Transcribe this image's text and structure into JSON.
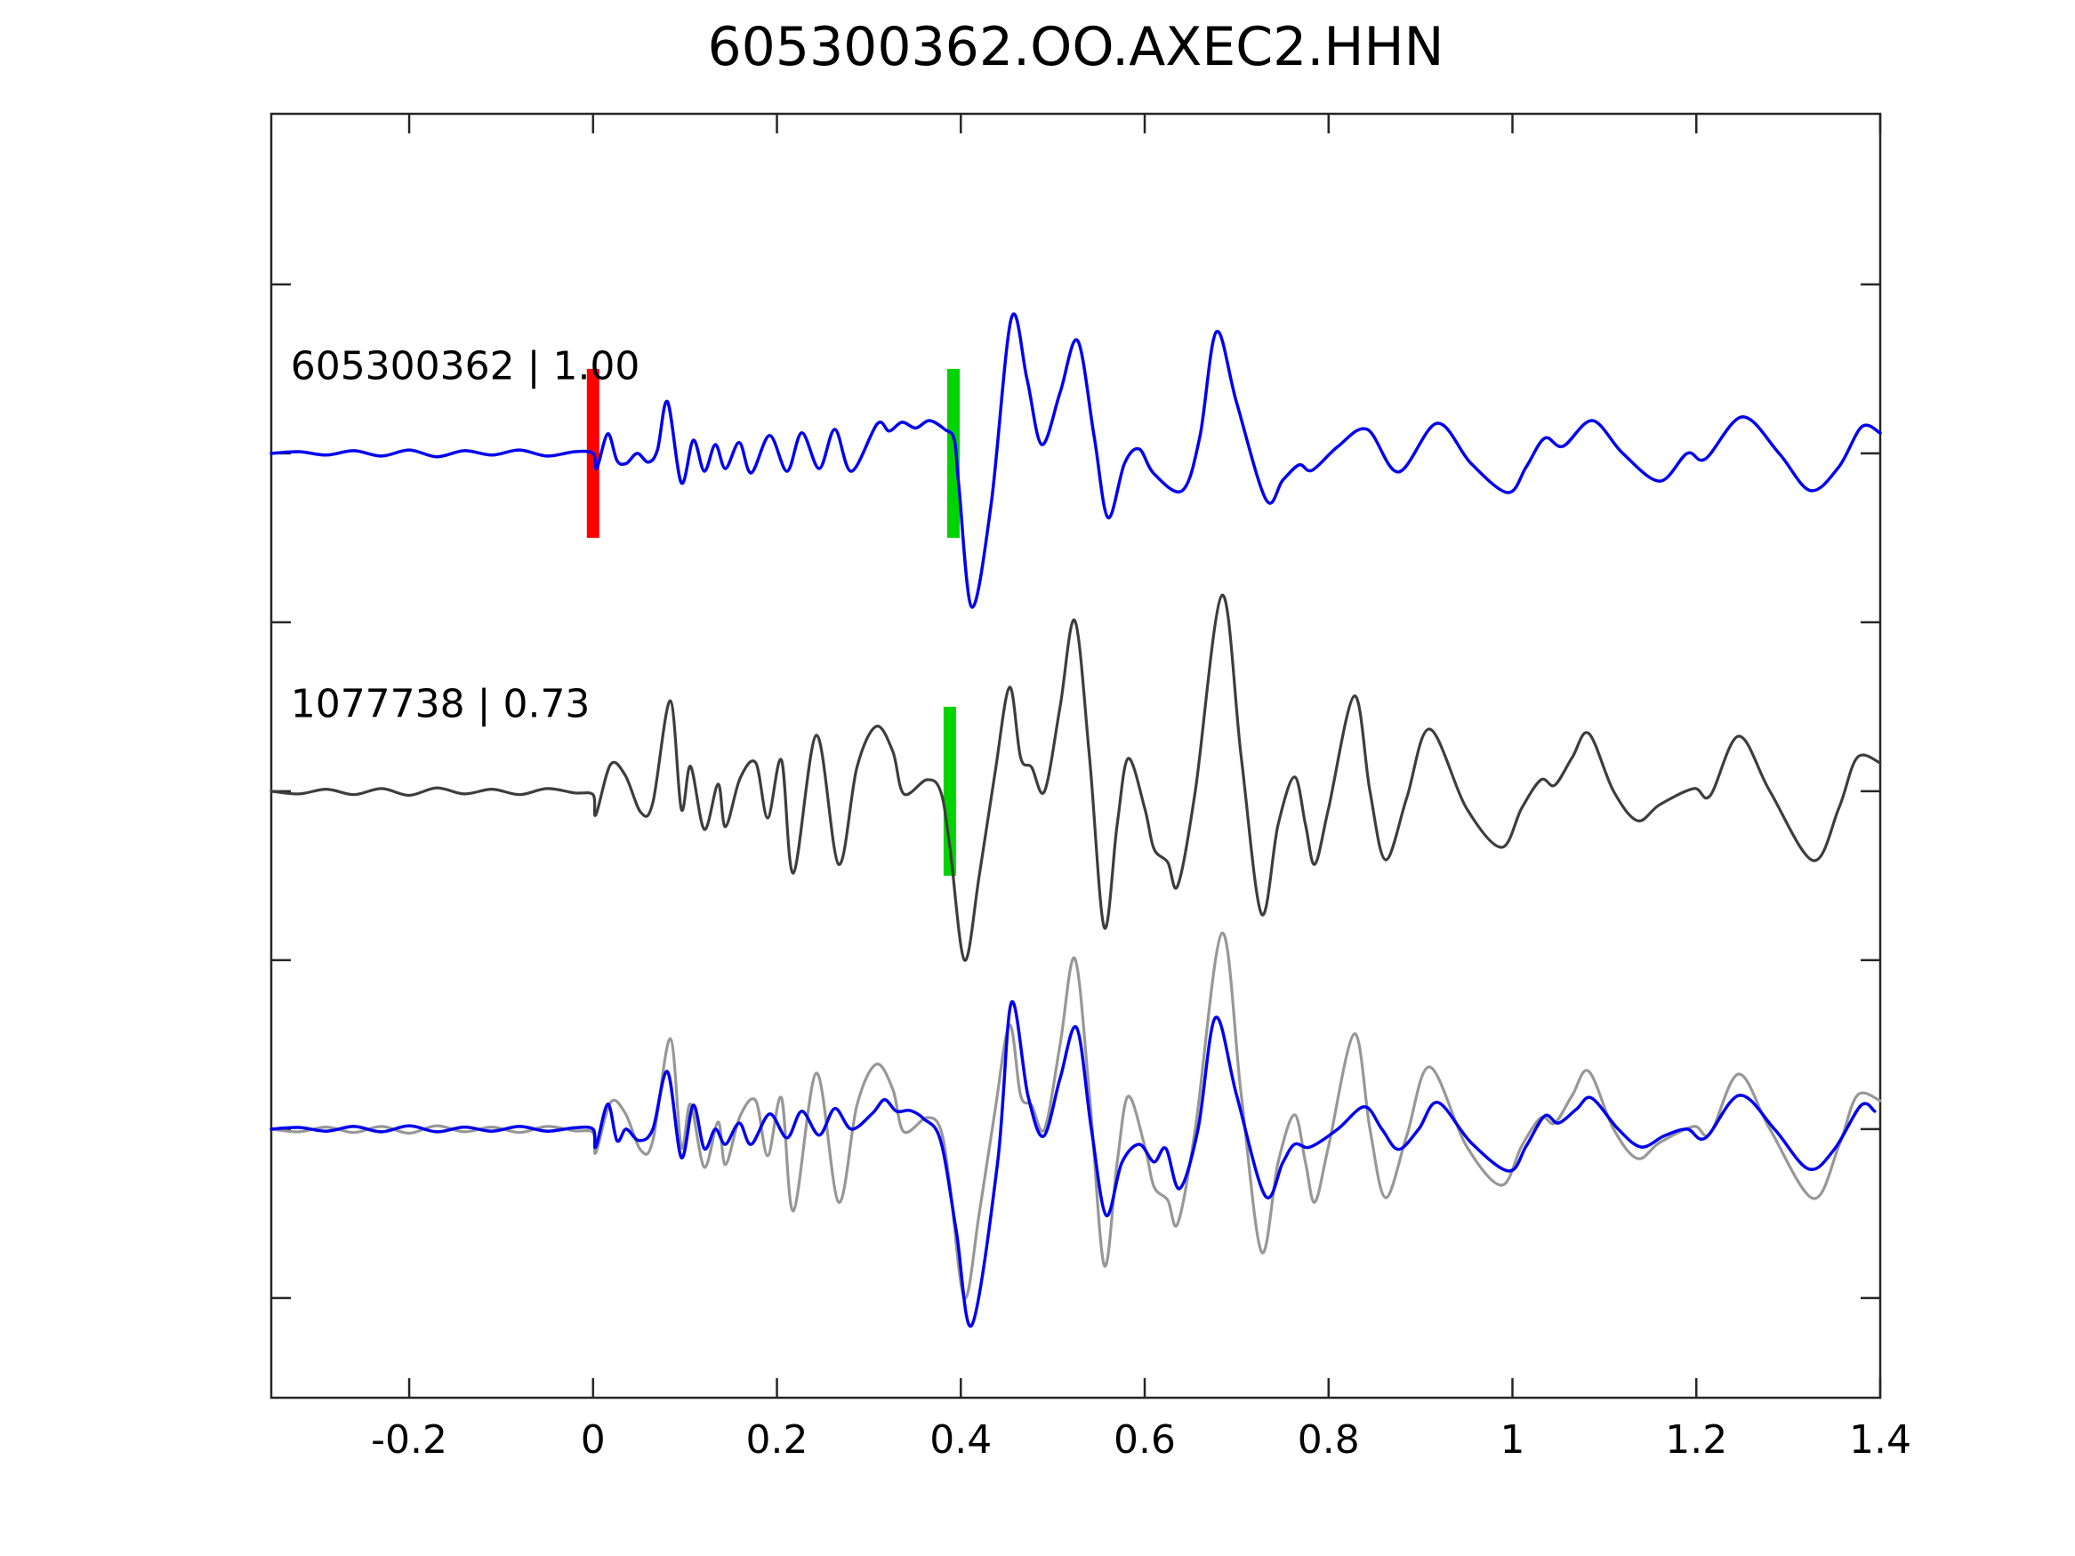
{
  "chart_data": {
    "type": "line",
    "title": "605300362.OO.AXEC2.HHN",
    "xlabel": "",
    "ylabel": "",
    "grid": false,
    "legend": "none",
    "xlim": [
      -0.35,
      1.4
    ],
    "ylim_units": [
      -2.795,
      1.005
    ],
    "xticks": [
      -0.2,
      0,
      0.2,
      0.4,
      0.6,
      0.8,
      1,
      1.2,
      1.4
    ],
    "xtick_labels": [
      "-0.2",
      "0",
      "0.2",
      "0.4",
      "0.6",
      "0.8",
      "1",
      "1.2",
      "1.4"
    ],
    "ytick_units": [
      0.5,
      0,
      -0.5,
      -1,
      -1.5,
      -2,
      -2.5
    ],
    "colors": {
      "blue": "#0000ee",
      "darkgray": "#3d3d3d",
      "lightgray": "#979797",
      "red": "#ff0000",
      "green": "#00d400",
      "axis": "#262626",
      "text": "#000000"
    },
    "pick_half_height_units": 0.25,
    "picks": [
      {
        "trace": "ref",
        "t": 0.0,
        "color_key": "red"
      },
      {
        "trace": "ref",
        "t": 0.392,
        "color_key": "green"
      },
      {
        "trace": "cand",
        "t": 0.388,
        "color_key": "green"
      }
    ],
    "traces": [
      {
        "id": "ref",
        "label": "605300362 | 1.00",
        "label_xy_units": [
          -0.329,
          0.22
        ],
        "color_key": "blue",
        "width": 3.5,
        "baseline_unit": 0,
        "points": [
          [
            -0.35,
            0
          ],
          [
            -0.32,
            0.005
          ],
          [
            -0.29,
            -0.005
          ],
          [
            -0.26,
            0.008
          ],
          [
            -0.23,
            -0.008
          ],
          [
            -0.2,
            0.01
          ],
          [
            -0.17,
            -0.01
          ],
          [
            -0.14,
            0.008
          ],
          [
            -0.11,
            -0.005
          ],
          [
            -0.08,
            0.01
          ],
          [
            -0.05,
            -0.008
          ],
          [
            -0.02,
            0.005
          ],
          [
            0,
            0
          ],
          [
            0.004,
            -0.045
          ],
          [
            0.016,
            0.058
          ],
          [
            0.026,
            -0.021
          ],
          [
            0.036,
            -0.03
          ],
          [
            0.048,
            0.0
          ],
          [
            0.06,
            -0.026
          ],
          [
            0.07,
            0.01
          ],
          [
            0.081,
            0.153
          ],
          [
            0.096,
            -0.087
          ],
          [
            0.109,
            0.039
          ],
          [
            0.121,
            -0.053
          ],
          [
            0.133,
            0.026
          ],
          [
            0.144,
            -0.045
          ],
          [
            0.159,
            0.032
          ],
          [
            0.172,
            -0.058
          ],
          [
            0.192,
            0.053
          ],
          [
            0.211,
            -0.053
          ],
          [
            0.227,
            0.061
          ],
          [
            0.246,
            -0.045
          ],
          [
            0.263,
            0.071
          ],
          [
            0.281,
            -0.053
          ],
          [
            0.309,
            0.087
          ],
          [
            0.322,
            0.066
          ],
          [
            0.336,
            0.092
          ],
          [
            0.351,
            0.075
          ],
          [
            0.366,
            0.097
          ],
          [
            0.383,
            0.07
          ],
          [
            0.393,
            0.04
          ],
          [
            0.398,
            -0.1
          ],
          [
            0.412,
            -0.455
          ],
          [
            0.433,
            -0.15
          ],
          [
            0.455,
            0.4
          ],
          [
            0.472,
            0.22
          ],
          [
            0.488,
            0.026
          ],
          [
            0.508,
            0.18
          ],
          [
            0.527,
            0.334
          ],
          [
            0.545,
            0.05
          ],
          [
            0.56,
            -0.19
          ],
          [
            0.578,
            -0.03
          ],
          [
            0.594,
            0.013
          ],
          [
            0.61,
            -0.06
          ],
          [
            0.641,
            -0.11
          ],
          [
            0.66,
            0.05
          ],
          [
            0.678,
            0.36
          ],
          [
            0.7,
            0.15
          ],
          [
            0.732,
            -0.137
          ],
          [
            0.75,
            -0.08
          ],
          [
            0.768,
            -0.034
          ],
          [
            0.782,
            -0.05
          ],
          [
            0.81,
            0.02
          ],
          [
            0.842,
            0.071
          ],
          [
            0.876,
            -0.055
          ],
          [
            0.918,
            0.089
          ],
          [
            0.955,
            -0.03
          ],
          [
            0.995,
            -0.116
          ],
          [
            1.015,
            -0.04
          ],
          [
            1.035,
            0.045
          ],
          [
            1.055,
            0.021
          ],
          [
            1.087,
            0.097
          ],
          [
            1.12,
            0.0
          ],
          [
            1.16,
            -0.082
          ],
          [
            1.19,
            0.0
          ],
          [
            1.21,
            -0.016
          ],
          [
            1.25,
            0.108
          ],
          [
            1.29,
            0.0
          ],
          [
            1.324,
            -0.11
          ],
          [
            1.355,
            -0.04
          ],
          [
            1.38,
            0.079
          ],
          [
            1.4,
            0.06
          ]
        ]
      },
      {
        "id": "cand",
        "label": "1077738 | 0.73",
        "label_xy_units": [
          -0.329,
          -0.78
        ],
        "color_key": "darkgray",
        "width": 3.2,
        "baseline_unit": -1,
        "points": [
          [
            -0.35,
            0
          ],
          [
            -0.32,
            -0.008
          ],
          [
            -0.29,
            0.006
          ],
          [
            -0.26,
            -0.01
          ],
          [
            -0.23,
            0.008
          ],
          [
            -0.2,
            -0.012
          ],
          [
            -0.17,
            0.01
          ],
          [
            -0.14,
            -0.008
          ],
          [
            -0.11,
            0.006
          ],
          [
            -0.08,
            -0.01
          ],
          [
            -0.05,
            0.008
          ],
          [
            -0.02,
            -0.005
          ],
          [
            0,
            -0.01
          ],
          [
            0.003,
            -0.07
          ],
          [
            0.019,
            0.079
          ],
          [
            0.035,
            0.047
          ],
          [
            0.052,
            -0.063
          ],
          [
            0.065,
            -0.034
          ],
          [
            0.084,
            0.268
          ],
          [
            0.096,
            -0.053
          ],
          [
            0.106,
            0.074
          ],
          [
            0.121,
            -0.113
          ],
          [
            0.136,
            0.021
          ],
          [
            0.144,
            -0.105
          ],
          [
            0.16,
            0.039
          ],
          [
            0.177,
            0.084
          ],
          [
            0.19,
            -0.079
          ],
          [
            0.205,
            0.092
          ],
          [
            0.218,
            -0.242
          ],
          [
            0.243,
            0.166
          ],
          [
            0.267,
            -0.216
          ],
          [
            0.287,
            0.071
          ],
          [
            0.308,
            0.192
          ],
          [
            0.326,
            0.118
          ],
          [
            0.338,
            -0.008
          ],
          [
            0.363,
            0.034
          ],
          [
            0.378,
            0.0
          ],
          [
            0.388,
            -0.163
          ],
          [
            0.404,
            -0.5
          ],
          [
            0.42,
            -0.25
          ],
          [
            0.437,
            0.05
          ],
          [
            0.453,
            0.308
          ],
          [
            0.465,
            0.1
          ],
          [
            0.477,
            0.071
          ],
          [
            0.491,
            0.0
          ],
          [
            0.508,
            0.25
          ],
          [
            0.524,
            0.505
          ],
          [
            0.54,
            0.1
          ],
          [
            0.556,
            -0.403
          ],
          [
            0.57,
            -0.1
          ],
          [
            0.582,
            0.097
          ],
          [
            0.6,
            -0.05
          ],
          [
            0.61,
            -0.17
          ],
          [
            0.625,
            -0.21
          ],
          [
            0.636,
            -0.279
          ],
          [
            0.655,
            0.0
          ],
          [
            0.684,
            0.58
          ],
          [
            0.705,
            0.1
          ],
          [
            0.727,
            -0.363
          ],
          [
            0.745,
            -0.1
          ],
          [
            0.763,
            0.042
          ],
          [
            0.775,
            -0.1
          ],
          [
            0.785,
            -0.216
          ],
          [
            0.8,
            -0.05
          ],
          [
            0.828,
            0.282
          ],
          [
            0.845,
            0.0
          ],
          [
            0.862,
            -0.203
          ],
          [
            0.885,
            -0.02
          ],
          [
            0.91,
            0.184
          ],
          [
            0.95,
            -0.05
          ],
          [
            0.988,
            -0.166
          ],
          [
            1.01,
            -0.05
          ],
          [
            1.031,
            0.034
          ],
          [
            1.046,
            0.018
          ],
          [
            1.065,
            0.1
          ],
          [
            1.083,
            0.171
          ],
          [
            1.11,
            0.0
          ],
          [
            1.136,
            -0.087
          ],
          [
            1.16,
            -0.04
          ],
          [
            1.197,
            0.008
          ],
          [
            1.215,
            -0.013
          ],
          [
            1.246,
            0.163
          ],
          [
            1.28,
            0.0
          ],
          [
            1.327,
            -0.205
          ],
          [
            1.355,
            -0.05
          ],
          [
            1.375,
            0.1
          ],
          [
            1.4,
            0.084
          ]
        ]
      },
      {
        "id": "overlay_gray",
        "label": "",
        "color_key": "lightgray",
        "width": 3.2,
        "baseline_unit": -2,
        "points_ref": "cand"
      },
      {
        "id": "overlay_blue",
        "label": "",
        "color_key": "blue",
        "width": 3.5,
        "baseline_unit": -2,
        "points": [
          [
            -0.35,
            0
          ],
          [
            -0.32,
            0.005
          ],
          [
            -0.29,
            -0.006
          ],
          [
            -0.26,
            0.008
          ],
          [
            -0.23,
            -0.008
          ],
          [
            -0.2,
            0.01
          ],
          [
            -0.17,
            -0.008
          ],
          [
            -0.14,
            0.006
          ],
          [
            -0.11,
            -0.006
          ],
          [
            -0.08,
            0.008
          ],
          [
            -0.05,
            -0.006
          ],
          [
            -0.02,
            0.004
          ],
          [
            0,
            0
          ],
          [
            0.003,
            -0.053
          ],
          [
            0.016,
            0.074
          ],
          [
            0.026,
            -0.034
          ],
          [
            0.036,
            0.0
          ],
          [
            0.05,
            -0.034
          ],
          [
            0.065,
            0.0
          ],
          [
            0.081,
            0.17
          ],
          [
            0.096,
            -0.084
          ],
          [
            0.109,
            0.071
          ],
          [
            0.121,
            -0.058
          ],
          [
            0.133,
            0.0
          ],
          [
            0.144,
            -0.045
          ],
          [
            0.159,
            0.018
          ],
          [
            0.172,
            -0.045
          ],
          [
            0.192,
            0.045
          ],
          [
            0.211,
            -0.026
          ],
          [
            0.227,
            0.053
          ],
          [
            0.246,
            -0.018
          ],
          [
            0.263,
            0.061
          ],
          [
            0.281,
            0.0
          ],
          [
            0.304,
            0.047
          ],
          [
            0.317,
            0.087
          ],
          [
            0.33,
            0.053
          ],
          [
            0.345,
            0.055
          ],
          [
            0.36,
            0.03
          ],
          [
            0.378,
            -0.034
          ],
          [
            0.395,
            -0.3
          ],
          [
            0.412,
            -0.58
          ],
          [
            0.44,
            -0.1
          ],
          [
            0.455,
            0.374
          ],
          [
            0.473,
            0.1
          ],
          [
            0.49,
            -0.021
          ],
          [
            0.508,
            0.15
          ],
          [
            0.526,
            0.3
          ],
          [
            0.542,
            0.0
          ],
          [
            0.558,
            -0.255
          ],
          [
            0.575,
            -0.1
          ],
          [
            0.594,
            -0.045
          ],
          [
            0.61,
            -0.097
          ],
          [
            0.623,
            -0.057
          ],
          [
            0.638,
            -0.176
          ],
          [
            0.658,
            0.0
          ],
          [
            0.677,
            0.33
          ],
          [
            0.7,
            0.1
          ],
          [
            0.731,
            -0.197
          ],
          [
            0.75,
            -0.1
          ],
          [
            0.763,
            -0.045
          ],
          [
            0.78,
            -0.053
          ],
          [
            0.81,
            0.0
          ],
          [
            0.839,
            0.066
          ],
          [
            0.858,
            0.0
          ],
          [
            0.876,
            -0.06
          ],
          [
            0.898,
            0.0
          ],
          [
            0.919,
            0.079
          ],
          [
            0.955,
            -0.04
          ],
          [
            0.996,
            -0.124
          ],
          [
            1.015,
            -0.05
          ],
          [
            1.035,
            0.039
          ],
          [
            1.05,
            0.018
          ],
          [
            1.07,
            0.06
          ],
          [
            1.086,
            0.092
          ],
          [
            1.115,
            0.0
          ],
          [
            1.14,
            -0.053
          ],
          [
            1.165,
            -0.02
          ],
          [
            1.19,
            0.0
          ],
          [
            1.21,
            -0.026
          ],
          [
            1.247,
            0.1
          ],
          [
            1.285,
            0.0
          ],
          [
            1.322,
            -0.118
          ],
          [
            1.35,
            -0.06
          ],
          [
            1.379,
            0.07
          ],
          [
            1.394,
            0.053
          ]
        ]
      }
    ]
  }
}
